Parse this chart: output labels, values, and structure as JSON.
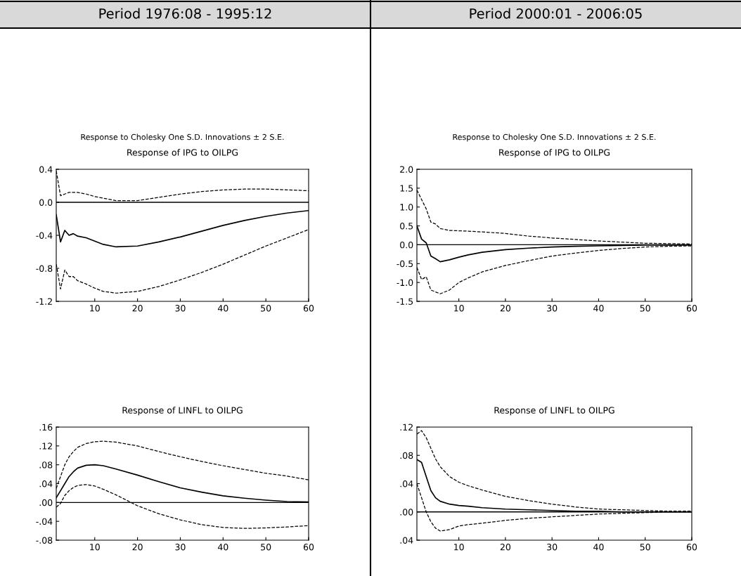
{
  "chart_data": [
    {
      "type": "line",
      "title": "Response of IPG to OILPG",
      "annotations": [
        "Period 1976:08 - 1995:12",
        "Response to Cholesky One S.D. Innovations ± 2 S.E."
      ],
      "x": [
        1,
        2,
        3,
        4,
        5,
        6,
        8,
        10,
        12,
        15,
        20,
        25,
        30,
        35,
        40,
        45,
        50,
        55,
        60
      ],
      "series": [
        {
          "color": "#000000",
          "line_style": "solid",
          "values": [
            -0.15,
            -0.48,
            -0.34,
            -0.4,
            -0.38,
            -0.41,
            -0.43,
            -0.47,
            -0.51,
            -0.54,
            -0.53,
            -0.48,
            -0.42,
            -0.35,
            -0.28,
            -0.22,
            -0.17,
            -0.13,
            -0.1
          ]
        },
        {
          "color": "#000000",
          "line_style": "dashed",
          "values": [
            0.38,
            0.08,
            0.1,
            0.12,
            0.12,
            0.12,
            0.1,
            0.07,
            0.05,
            0.02,
            0.02,
            0.06,
            0.1,
            0.13,
            0.15,
            0.16,
            0.16,
            0.15,
            0.14
          ]
        },
        {
          "color": "#000000",
          "line_style": "dashed",
          "values": [
            -0.75,
            -1.05,
            -0.82,
            -0.9,
            -0.9,
            -0.95,
            -0.99,
            -1.04,
            -1.08,
            -1.1,
            -1.08,
            -1.02,
            -0.94,
            -0.85,
            -0.75,
            -0.64,
            -0.53,
            -0.43,
            -0.33
          ]
        }
      ],
      "xlim": [
        1,
        60
      ],
      "xticks": [
        10,
        20,
        30,
        40,
        50,
        60
      ],
      "ylim": [
        -1.2,
        0.4
      ],
      "yticks": [
        {
          "value": 0.4,
          "label": "0.4"
        },
        {
          "value": 0.0,
          "label": "0.0"
        },
        {
          "value": -0.4,
          "label": "-0.4"
        },
        {
          "value": -0.8,
          "label": "-0.8"
        },
        {
          "value": -1.2,
          "label": "-1.2"
        }
      ],
      "ref_lines": [
        {
          "axis": "y",
          "value": 0,
          "color": "#000000",
          "line_style": "solid"
        }
      ],
      "grid": false,
      "legend": false
    },
    {
      "type": "line",
      "title": "Response of IPG to OILPG",
      "annotations": [
        "Period 2000:01 - 2006:05",
        "Response to Cholesky One S.D. Innovations ± 2 S.E."
      ],
      "x": [
        1,
        2,
        3,
        4,
        5,
        6,
        8,
        10,
        12,
        15,
        20,
        25,
        30,
        35,
        40,
        45,
        50,
        55,
        60
      ],
      "series": [
        {
          "color": "#000000",
          "line_style": "solid",
          "values": [
            0.5,
            0.15,
            0.05,
            -0.3,
            -0.37,
            -0.45,
            -0.4,
            -0.33,
            -0.27,
            -0.2,
            -0.13,
            -0.09,
            -0.06,
            -0.04,
            -0.03,
            -0.02,
            -0.01,
            -0.01,
            -0.01
          ]
        },
        {
          "color": "#000000",
          "line_style": "dashed",
          "values": [
            1.45,
            1.2,
            0.95,
            0.6,
            0.55,
            0.43,
            0.38,
            0.37,
            0.36,
            0.34,
            0.3,
            0.23,
            0.18,
            0.14,
            0.1,
            0.07,
            0.04,
            0.03,
            0.02
          ]
        },
        {
          "color": "#000000",
          "line_style": "dashed",
          "values": [
            -0.6,
            -0.92,
            -0.85,
            -1.2,
            -1.25,
            -1.3,
            -1.2,
            -1.0,
            -0.88,
            -0.72,
            -0.55,
            -0.42,
            -0.3,
            -0.22,
            -0.15,
            -0.1,
            -0.06,
            -0.04,
            -0.03
          ]
        }
      ],
      "xlim": [
        1,
        60
      ],
      "xticks": [
        10,
        20,
        30,
        40,
        50,
        60
      ],
      "ylim": [
        -1.5,
        2.0
      ],
      "yticks": [
        {
          "value": 2.0,
          "label": "2.0"
        },
        1.5,
        {
          "value": 1.0,
          "label": "1.0"
        },
        0.5,
        {
          "value": 0.0,
          "label": "0.0"
        },
        -0.5,
        {
          "value": -1.0,
          "label": "-1.0"
        },
        -1.5
      ],
      "ref_lines": [
        {
          "axis": "y",
          "value": 0,
          "color": "#000000",
          "line_style": "solid"
        }
      ],
      "grid": false,
      "legend": false
    },
    {
      "type": "line",
      "title": "Response of LINFL to OILPG",
      "x": [
        1,
        2,
        3,
        4,
        5,
        6,
        8,
        10,
        12,
        15,
        20,
        25,
        30,
        35,
        40,
        45,
        50,
        55,
        60
      ],
      "series": [
        {
          "color": "#000000",
          "line_style": "solid",
          "values": [
            0.01,
            0.025,
            0.04,
            0.055,
            0.065,
            0.073,
            0.079,
            0.08,
            0.078,
            0.071,
            0.058,
            0.044,
            0.031,
            0.022,
            0.014,
            0.009,
            0.005,
            0.002,
            0.001
          ]
        },
        {
          "color": "#000000",
          "line_style": "dashed",
          "values": [
            0.03,
            0.055,
            0.08,
            0.097,
            0.108,
            0.117,
            0.125,
            0.129,
            0.13,
            0.128,
            0.12,
            0.108,
            0.097,
            0.087,
            0.078,
            0.07,
            0.062,
            0.056,
            0.048
          ]
        },
        {
          "color": "#000000",
          "line_style": "dashed",
          "values": [
            -0.01,
            -0.002,
            0.015,
            0.025,
            0.032,
            0.036,
            0.038,
            0.035,
            0.028,
            0.016,
            -0.007,
            -0.024,
            -0.037,
            -0.047,
            -0.053,
            -0.055,
            -0.054,
            -0.052,
            -0.049
          ]
        }
      ],
      "xlim": [
        1,
        60
      ],
      "xticks": [
        10,
        20,
        30,
        40,
        50,
        60
      ],
      "ylim": [
        -0.08,
        0.16
      ],
      "yticks": [
        {
          "value": 0.16,
          "label": ".16"
        },
        {
          "value": 0.12,
          "label": ".12"
        },
        {
          "value": 0.08,
          "label": ".08"
        },
        {
          "value": 0.04,
          "label": ".04"
        },
        {
          "value": 0.0,
          "label": ".00"
        },
        {
          "value": -0.04,
          "label": "-.04"
        },
        {
          "value": -0.08,
          "label": "-.08"
        }
      ],
      "ref_lines": [
        {
          "axis": "y",
          "value": 0,
          "color": "#000000",
          "line_style": "solid"
        }
      ],
      "grid": false,
      "legend": false
    },
    {
      "type": "line",
      "title": "Response of LINFL to OILPG",
      "x": [
        1,
        2,
        3,
        4,
        5,
        6,
        8,
        10,
        12,
        15,
        20,
        25,
        30,
        35,
        40,
        45,
        50,
        55,
        60
      ],
      "series": [
        {
          "color": "#000000",
          "line_style": "solid",
          "values": [
            0.074,
            0.07,
            0.05,
            0.03,
            0.02,
            0.015,
            0.011,
            0.009,
            0.008,
            0.006,
            0.004,
            0.003,
            0.002,
            0.001,
            0.001,
            0.0,
            0.0,
            0.0,
            0.0
          ]
        },
        {
          "color": "#000000",
          "line_style": "dashed",
          "values": [
            0.11,
            0.115,
            0.105,
            0.09,
            0.075,
            0.064,
            0.05,
            0.042,
            0.037,
            0.031,
            0.022,
            0.016,
            0.011,
            0.007,
            0.004,
            0.003,
            0.002,
            0.001,
            0.001
          ]
        },
        {
          "color": "#000000",
          "line_style": "dashed",
          "values": [
            0.04,
            0.02,
            0.0,
            -0.014,
            -0.023,
            -0.027,
            -0.025,
            -0.02,
            -0.018,
            -0.016,
            -0.012,
            -0.009,
            -0.007,
            -0.005,
            -0.003,
            -0.002,
            -0.001,
            0.0,
            0.0
          ]
        }
      ],
      "xlim": [
        1,
        60
      ],
      "xticks": [
        10,
        20,
        30,
        40,
        50,
        60
      ],
      "ylim": [
        -0.04,
        0.12
      ],
      "yticks": [
        {
          "value": 0.12,
          "label": ".12"
        },
        {
          "value": 0.08,
          "label": ".08"
        },
        {
          "value": 0.04,
          "label": ".04"
        },
        {
          "value": 0.0,
          "label": ".00"
        },
        {
          "value": -0.04,
          "label": ".04"
        }
      ],
      "ref_lines": [
        {
          "axis": "y",
          "value": 0,
          "color": "#000000",
          "line_style": "solid"
        }
      ],
      "grid": false,
      "legend": false
    }
  ]
}
